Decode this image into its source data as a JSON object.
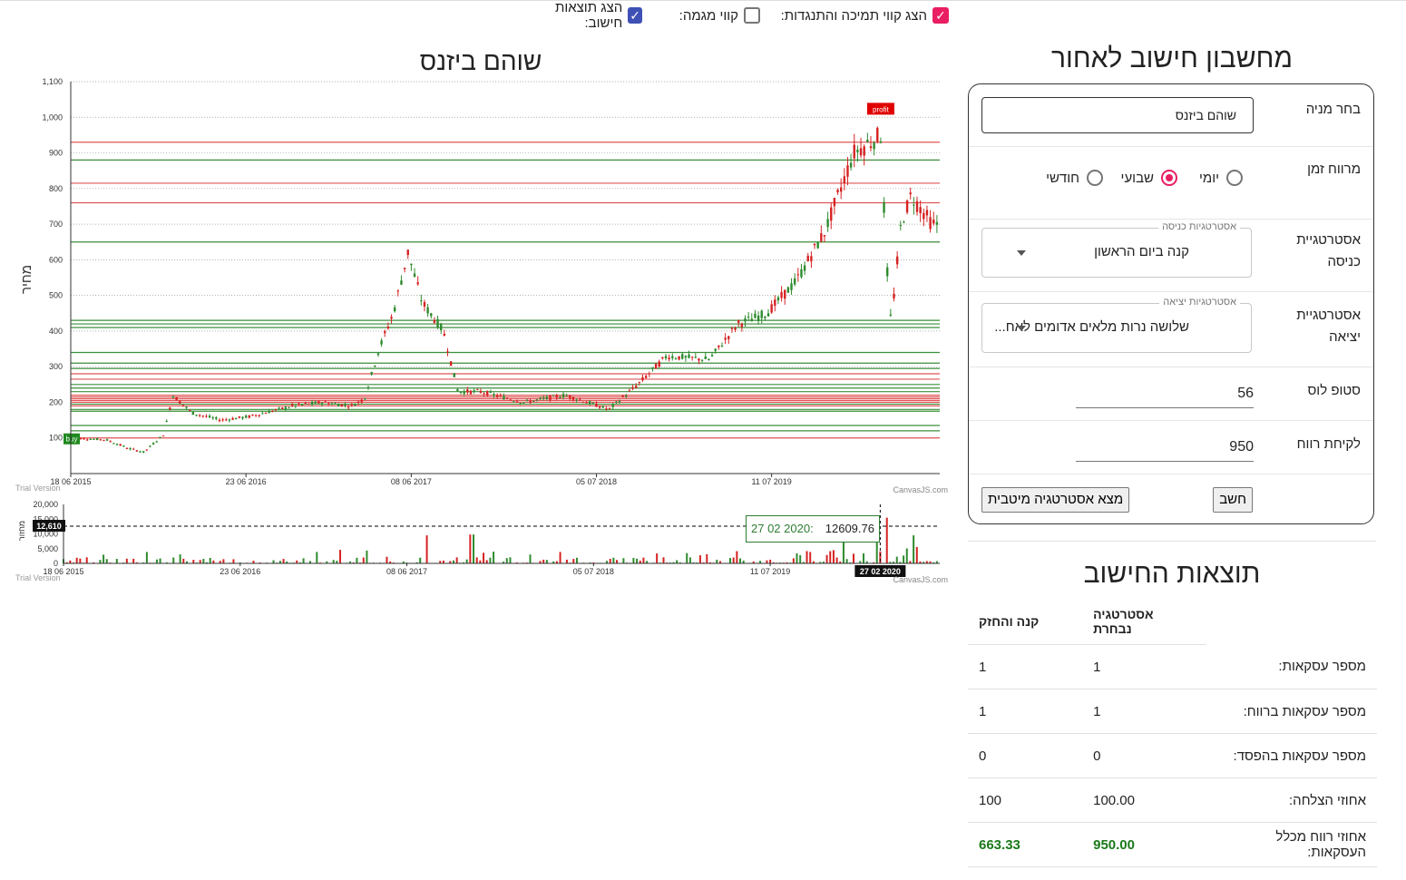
{
  "toggles": [
    {
      "label": "הצג קווי תמיכה והתנגדות:",
      "checked": true,
      "color": "#e91e63"
    },
    {
      "label": "קווי מגמה:",
      "checked": false
    },
    {
      "label": "הצג תוצאות חישוב:",
      "checked": true,
      "color": "#3f51b5"
    }
  ],
  "chart": {
    "title": "שוהם ביזנס",
    "y_axis_label": "מחיר",
    "trial_label": "Trial Version",
    "credit_label": "CanvasJS.com",
    "y_ticks": [
      "1,100",
      "1,000",
      "900",
      "800",
      "700",
      "600",
      "500",
      "400",
      "300",
      "200",
      "100"
    ],
    "x_ticks": [
      "18 06 2015",
      "23 06 2016",
      "08 06 2017",
      "05 07 2018",
      "11 07 2019"
    ],
    "buy_marker": "buy",
    "sell_marker": "profit"
  },
  "volume_chart": {
    "y_axis_label": "מחזור",
    "y_ticks": [
      "20,000",
      "15,000",
      "10,000",
      "5,000",
      "0"
    ],
    "x_ticks": [
      "18 06 2015",
      "23 06 2016",
      "08 06 2017",
      "05 07 2018",
      "11 07 2019"
    ],
    "crosshair_value": "12,610",
    "crosshair_date": "27 02 2020",
    "tooltip_date": "27 02 2020:",
    "tooltip_value": "12609.76",
    "trial_label": "Trial Version",
    "credit_label": "CanvasJS.com"
  },
  "chart_data": {
    "type": "candlestick",
    "title": "שוהם ביזנס",
    "ylabel": "מחיר",
    "ylim": [
      0,
      1100
    ],
    "x_tick_labels": [
      "18 06 2015",
      "23 06 2016",
      "08 06 2017",
      "05 07 2018",
      "11 07 2019"
    ],
    "price_path": [
      [
        "2015-06-18",
        100
      ],
      [
        "2015-09-01",
        95
      ],
      [
        "2015-10-20",
        70
      ],
      [
        "2015-11-20",
        60
      ],
      [
        "2016-01-01",
        110
      ],
      [
        "2016-01-20",
        220
      ],
      [
        "2016-03-01",
        170
      ],
      [
        "2016-05-01",
        150
      ],
      [
        "2016-07-01",
        160
      ],
      [
        "2016-10-01",
        190
      ],
      [
        "2016-12-01",
        200
      ],
      [
        "2017-02-01",
        190
      ],
      [
        "2017-03-01",
        210
      ],
      [
        "2017-04-01",
        350
      ],
      [
        "2017-05-01",
        450
      ],
      [
        "2017-06-01",
        620
      ],
      [
        "2017-07-01",
        480
      ],
      [
        "2017-08-15",
        400
      ],
      [
        "2017-09-15",
        230
      ],
      [
        "2017-11-01",
        230
      ],
      [
        "2018-02-01",
        200
      ],
      [
        "2018-05-01",
        220
      ],
      [
        "2018-08-01",
        180
      ],
      [
        "2018-10-01",
        250
      ],
      [
        "2018-12-01",
        330
      ],
      [
        "2019-03-01",
        320
      ],
      [
        "2019-05-01",
        420
      ],
      [
        "2019-07-01",
        450
      ],
      [
        "2019-09-01",
        540
      ],
      [
        "2019-11-01",
        680
      ],
      [
        "2020-01-01",
        900
      ],
      [
        "2020-02-27",
        950
      ],
      [
        "2020-03-10",
        600
      ],
      [
        "2020-03-20",
        420
      ],
      [
        "2020-04-10",
        700
      ],
      [
        "2020-05-01",
        780
      ],
      [
        "2020-06-15",
        700
      ]
    ],
    "support_lines": [
      880,
      650,
      430,
      420,
      410,
      340,
      310,
      295,
      250,
      240,
      230,
      195,
      180,
      175,
      135,
      120
    ],
    "resistance_lines": [
      930,
      815,
      760,
      280,
      265,
      220,
      215,
      210,
      205,
      200,
      190,
      100
    ],
    "markers": [
      {
        "label": "buy",
        "date": "2015-06-18",
        "price": 100
      },
      {
        "label": "profit",
        "date": "2020-02-27",
        "price": 1015
      }
    ],
    "volume": {
      "ylim": [
        0,
        20000
      ],
      "highlight": {
        "date": "2020-02-27",
        "value": 12609.76
      }
    }
  },
  "calculator": {
    "title": "מחשבון חישוב לאחור",
    "stock_label": "בחר מניה",
    "stock_value": "שוהם ביזנס",
    "range_label": "מרווח זמן",
    "range_options": [
      "יומי",
      "שבועי",
      "חודשי"
    ],
    "range_selected": "שבועי",
    "entry_label_1": "אסטרטגיית",
    "entry_label_2": "כניסה",
    "entry_legend": "אסטרטגיות כניסה",
    "entry_value": "קנה ביום הראשון",
    "exit_label_1": "אסטרטגיית",
    "exit_label_2": "יציאה",
    "exit_legend": "אסטרטגיות יציאה",
    "exit_value": "שלושה נרות מלאים אדומים לאח...",
    "stoploss_label": "סטופ לוס",
    "stoploss_value": "56",
    "takeprofit_label": "לקיחת רווח",
    "takeprofit_value": "950",
    "calc_button": "חשב",
    "optimal_button": "מצא אסטרטגיה מיטבית"
  },
  "results": {
    "title": "תוצאות החישוב",
    "col_selected": "אסטרטגיה נבחרת",
    "col_hold": "קנה והחזק",
    "rows": [
      {
        "label": "מספר עסקאות:",
        "selected": "1",
        "hold": "1"
      },
      {
        "label": "מספר עסקאות ברווח:",
        "selected": "1",
        "hold": "1"
      },
      {
        "label": "מספר עסקאות בהפסד:",
        "selected": "0",
        "hold": "0"
      },
      {
        "label": "אחוזי הצלחה:",
        "selected": "100.00",
        "hold": "100"
      },
      {
        "label": "אחוזי רווח מכלל העסקאות:",
        "selected": "950.00",
        "hold": "663.33"
      }
    ]
  }
}
